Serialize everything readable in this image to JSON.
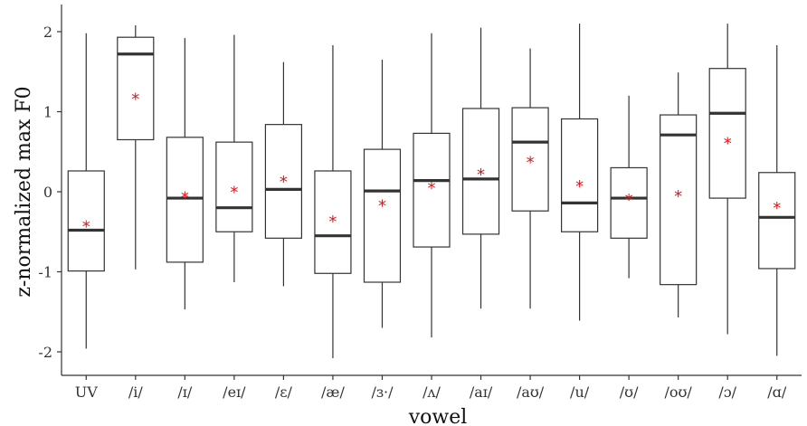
{
  "chart_data": {
    "type": "boxplot",
    "xlabel": "vowel",
    "ylabel": "z-normalized max F0",
    "ylim": [
      -2.25,
      2.1
    ],
    "yticks": [
      -2,
      -1,
      0,
      1,
      2
    ],
    "ytick_labels": [
      "-2",
      "-1",
      "0",
      "1",
      "2"
    ],
    "grid": false,
    "legend": "none",
    "mean_marker": "*",
    "colors": {
      "box_line": "#333333",
      "median": "#333333",
      "mean": "#d7191c",
      "axis": "#333333"
    },
    "categories": [
      "UV",
      "/i/",
      "/ɪ/",
      "/eɪ/",
      "/ɛ/",
      "/æ/",
      "/ɜ·/",
      "/ʌ/",
      "/aɪ/",
      "/aʊ/",
      "/u/",
      "/ʊ/",
      "/oʊ/",
      "/ɔ/",
      "/ɑ/"
    ],
    "boxes": [
      {
        "whisker_low": -1.96,
        "q1": -0.99,
        "median": -0.48,
        "q3": 0.26,
        "whisker_high": 1.98,
        "mean": -0.4
      },
      {
        "whisker_low": -0.97,
        "q1": 0.65,
        "median": 1.72,
        "q3": 1.93,
        "whisker_high": 2.08,
        "mean": 1.19
      },
      {
        "whisker_low": -1.47,
        "q1": -0.88,
        "median": -0.08,
        "q3": 0.68,
        "whisker_high": 1.92,
        "mean": -0.04
      },
      {
        "whisker_low": -1.13,
        "q1": -0.5,
        "median": -0.2,
        "q3": 0.62,
        "whisker_high": 1.96,
        "mean": 0.03
      },
      {
        "whisker_low": -1.18,
        "q1": -0.58,
        "median": 0.03,
        "q3": 0.84,
        "whisker_high": 1.62,
        "mean": 0.16
      },
      {
        "whisker_low": -2.08,
        "q1": -1.02,
        "median": -0.55,
        "q3": 0.26,
        "whisker_high": 1.83,
        "mean": -0.34
      },
      {
        "whisker_low": -1.7,
        "q1": -1.13,
        "median": 0.01,
        "q3": 0.53,
        "whisker_high": 1.65,
        "mean": -0.14
      },
      {
        "whisker_low": -1.82,
        "q1": -0.69,
        "median": 0.14,
        "q3": 0.73,
        "whisker_high": 1.98,
        "mean": 0.08
      },
      {
        "whisker_low": -1.46,
        "q1": -0.53,
        "median": 0.16,
        "q3": 1.04,
        "whisker_high": 2.05,
        "mean": 0.25
      },
      {
        "whisker_low": -1.46,
        "q1": -0.24,
        "median": 0.62,
        "q3": 1.05,
        "whisker_high": 1.79,
        "mean": 0.4
      },
      {
        "whisker_low": -1.61,
        "q1": -0.5,
        "median": -0.14,
        "q3": 0.91,
        "whisker_high": 2.1,
        "mean": 0.1
      },
      {
        "whisker_low": -1.08,
        "q1": -0.58,
        "median": -0.08,
        "q3": 0.3,
        "whisker_high": 1.2,
        "mean": -0.07
      },
      {
        "whisker_low": -1.57,
        "q1": -1.16,
        "median": 0.71,
        "q3": 0.96,
        "whisker_high": 1.49,
        "mean": -0.02
      },
      {
        "whisker_low": -1.78,
        "q1": -0.08,
        "median": 0.98,
        "q3": 1.54,
        "whisker_high": 2.1,
        "mean": 0.64
      },
      {
        "whisker_low": -2.05,
        "q1": -0.96,
        "median": -0.32,
        "q3": 0.24,
        "whisker_high": 1.83,
        "mean": -0.17
      }
    ]
  }
}
